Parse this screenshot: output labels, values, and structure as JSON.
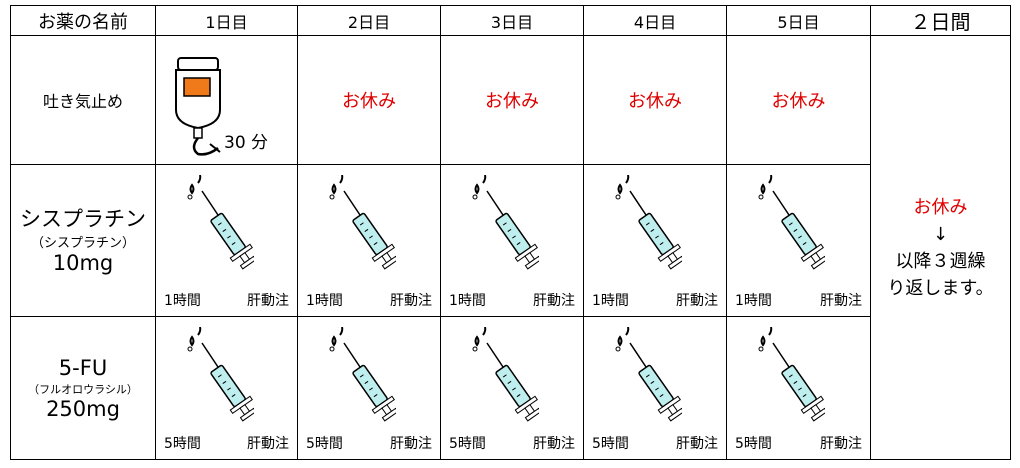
{
  "header": [
    "お薬の名前",
    "1日目",
    "2日目",
    "3日目",
    "4日目",
    "5日目",
    "２日間"
  ],
  "rows": [
    {
      "name": "吐き気止め",
      "cells": [
        {
          "note": "30 分"
        },
        {
          "text": "お休み"
        },
        {
          "text": "お休み"
        },
        {
          "text": "お休み"
        },
        {
          "text": "お休み"
        }
      ]
    },
    {
      "name": "シスプラチン",
      "sub": "（シスプラチン）",
      "dose": "10mg",
      "cells": [
        {
          "time": "1時間",
          "route": "肝動注"
        },
        {
          "time": "1時間",
          "route": "肝動注"
        },
        {
          "time": "1時間",
          "route": "肝動注"
        },
        {
          "time": "1時間",
          "route": "肝動注"
        },
        {
          "time": "1時間",
          "route": "肝動注"
        }
      ]
    },
    {
      "name": "5-FU",
      "sub": "（フルオロウラシル）",
      "dose": "250mg",
      "cells": [
        {
          "time": "5時間",
          "route": "肝動注"
        },
        {
          "time": "5時間",
          "route": "肝動注"
        },
        {
          "time": "5時間",
          "route": "肝動注"
        },
        {
          "time": "5時間",
          "route": "肝動注"
        },
        {
          "time": "5時間",
          "route": "肝動注"
        }
      ]
    }
  ],
  "rest_column": {
    "lines": [
      "お休み",
      "↓",
      "以降３週繰",
      "り返します。"
    ]
  }
}
